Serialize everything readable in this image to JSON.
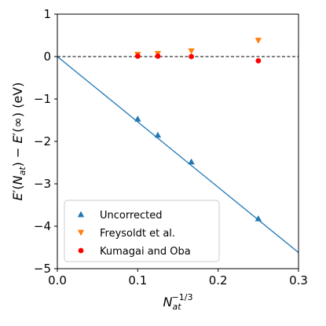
{
  "chart_data": {
    "type": "scatter",
    "xlabel": "N_at^{-1/3}",
    "ylabel": "E′(N_at) − E′(∞) (eV)",
    "xlim": [
      0.0,
      0.3
    ],
    "ylim": [
      -5,
      1
    ],
    "xticks": [
      "0.0",
      "0.1",
      "0.2",
      "0.3"
    ],
    "yticks": [
      "−5",
      "−4",
      "−3",
      "−2",
      "−1",
      "0",
      "1"
    ],
    "grid": false,
    "legend_position": "bottom-left",
    "reference_line": {
      "y": 0,
      "style": "dashed",
      "color": "#000000"
    },
    "fit_line": {
      "x": [
        0.0,
        0.3
      ],
      "y": [
        0.0,
        -4.62
      ],
      "color": "#1f77b4"
    },
    "series": [
      {
        "name": "Uncorrected",
        "marker": "triangle-up",
        "color": "#1f77b4",
        "x": [
          0.1,
          0.125,
          0.1667,
          0.25
        ],
        "y": [
          -1.47,
          -1.85,
          -2.48,
          -3.82
        ]
      },
      {
        "name": "Freysoldt et al.",
        "marker": "triangle-down",
        "color": "#ff7f0e",
        "x": [
          0.1,
          0.125,
          0.1667,
          0.25
        ],
        "y": [
          0.05,
          0.07,
          0.13,
          0.38
        ]
      },
      {
        "name": "Kumagai and Oba",
        "marker": "circle",
        "color": "#ff0000",
        "x": [
          0.1,
          0.125,
          0.1667,
          0.25
        ],
        "y": [
          0.01,
          0.01,
          0.0,
          -0.1
        ]
      }
    ]
  }
}
